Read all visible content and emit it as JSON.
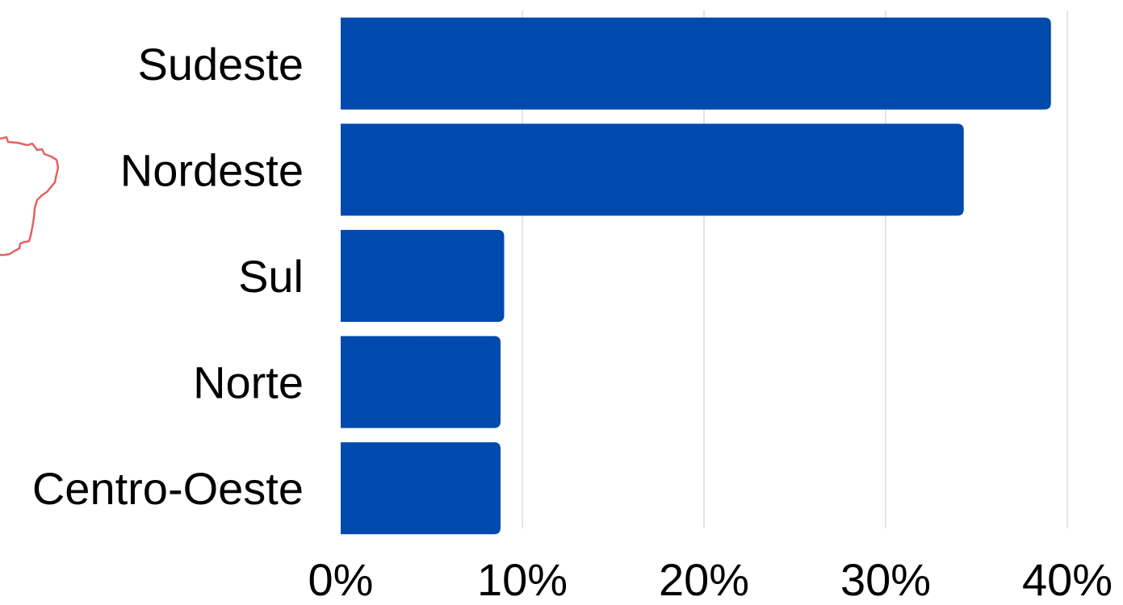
{
  "chart_data": {
    "type": "bar",
    "orientation": "horizontal",
    "categories": [
      "Sudeste",
      "Nordeste",
      "Sul",
      "Norte",
      "Centro-Oeste"
    ],
    "values": [
      39.1,
      34.3,
      9.0,
      8.8,
      8.8
    ],
    "xlim": [
      0,
      40
    ],
    "x_ticks": [
      0,
      10,
      20,
      30,
      40
    ],
    "x_tick_labels": [
      "0%",
      "10%",
      "20%",
      "30%",
      "40%"
    ],
    "grid": "vertical",
    "legend": "none",
    "title": "",
    "xlabel": "",
    "ylabel": "",
    "colors": {
      "bar": "#004aad",
      "grid": "#d0d0d0",
      "map_outline": "#e8605f"
    }
  },
  "decoration": {
    "icon": "brazil-map-icon"
  }
}
